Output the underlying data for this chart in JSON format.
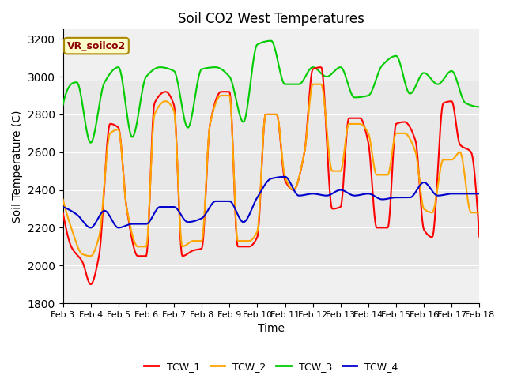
{
  "title": "Soil CO2 West Temperatures",
  "xlabel": "Time",
  "ylabel": "Soil Temperature (C)",
  "ylim": [
    1800,
    3250
  ],
  "xlim": [
    0,
    15
  ],
  "x_tick_labels": [
    "Feb 3",
    "Feb 4",
    "Feb 5",
    "Feb 6",
    "Feb 7",
    "Feb 8",
    "Feb 9",
    "Feb 10",
    "Feb 11",
    "Feb 12",
    "Feb 13",
    "Feb 14",
    "Feb 15",
    "Feb 16",
    "Feb 17",
    "Feb 18"
  ],
  "annotation_text": "VR_soilco2",
  "annotation_color": "#8B0000",
  "annotation_bg": "#FFFFCC",
  "bg_band_color": "#E8E8E8",
  "bg_band_y1": 1980,
  "bg_band_y2": 2980,
  "colors": {
    "TCW_1": "#FF0000",
    "TCW_2": "#FFA500",
    "TCW_3": "#00CC00",
    "TCW_4": "#0000CC"
  },
  "linewidth": 1.5
}
